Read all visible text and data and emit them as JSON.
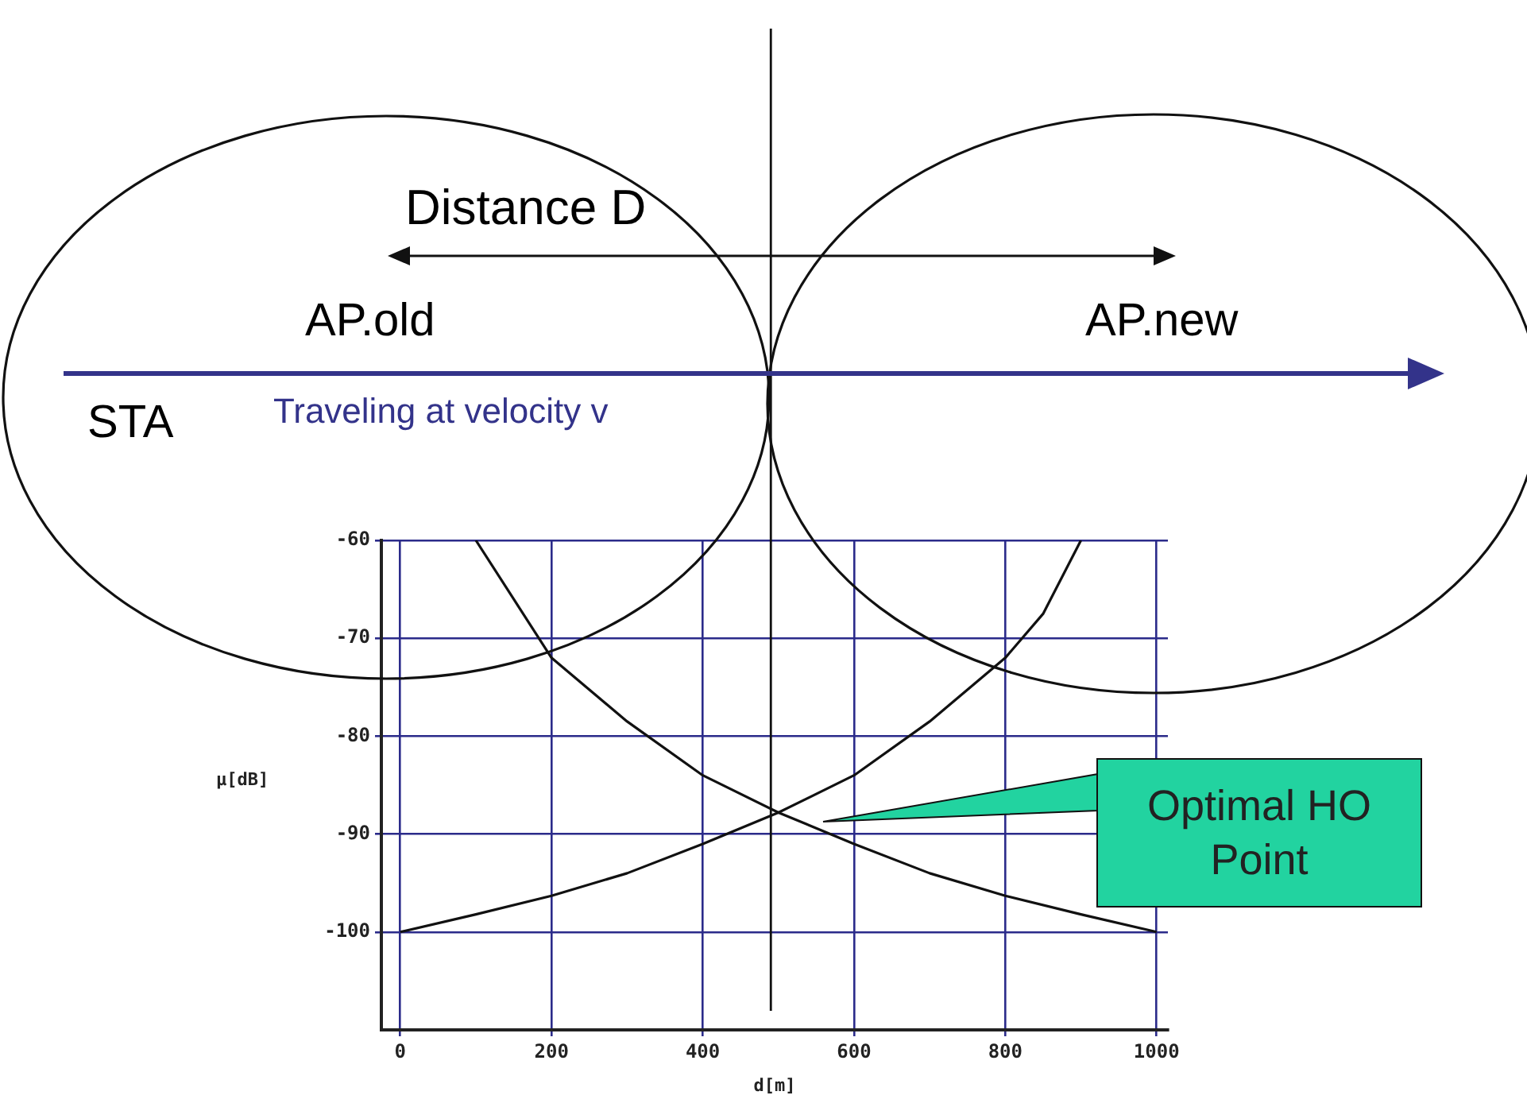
{
  "chart_data": {
    "type": "line",
    "xlabel": "d[m]",
    "ylabel": "μ[dB]",
    "xlim": [
      -25,
      1015
    ],
    "ylim": [
      -110,
      -60
    ],
    "xticks": [
      0,
      200,
      400,
      600,
      800,
      1000
    ],
    "yticks": [
      -60,
      -70,
      -80,
      -90,
      -100
    ],
    "grid": true,
    "ref_lines": [
      {
        "axis": "x",
        "value": 490,
        "color": "#111111"
      }
    ],
    "legend": false,
    "marker": "none",
    "line_style": "solid",
    "series": [
      {
        "color": "#111111",
        "x": [
          0,
          100,
          200,
          300,
          400,
          500,
          600,
          700,
          800,
          850,
          900
        ],
        "values": [
          -100,
          -98.2,
          -96.3,
          -94,
          -91,
          -87.8,
          -84,
          -78.5,
          -72,
          -67.5,
          -60
        ]
      },
      {
        "color": "#111111",
        "x": [
          100,
          150,
          200,
          300,
          400,
          500,
          600,
          700,
          800,
          900,
          1000
        ],
        "values": [
          -60,
          -66,
          -72,
          -78.5,
          -84,
          -87.8,
          -91,
          -94,
          -96.3,
          -98.2,
          -100
        ]
      }
    ],
    "annotations": [
      "Distance D",
      "AP.old",
      "AP.new",
      "STA",
      "Traveling at velocity v",
      "Optimal HO Point"
    ]
  }
}
